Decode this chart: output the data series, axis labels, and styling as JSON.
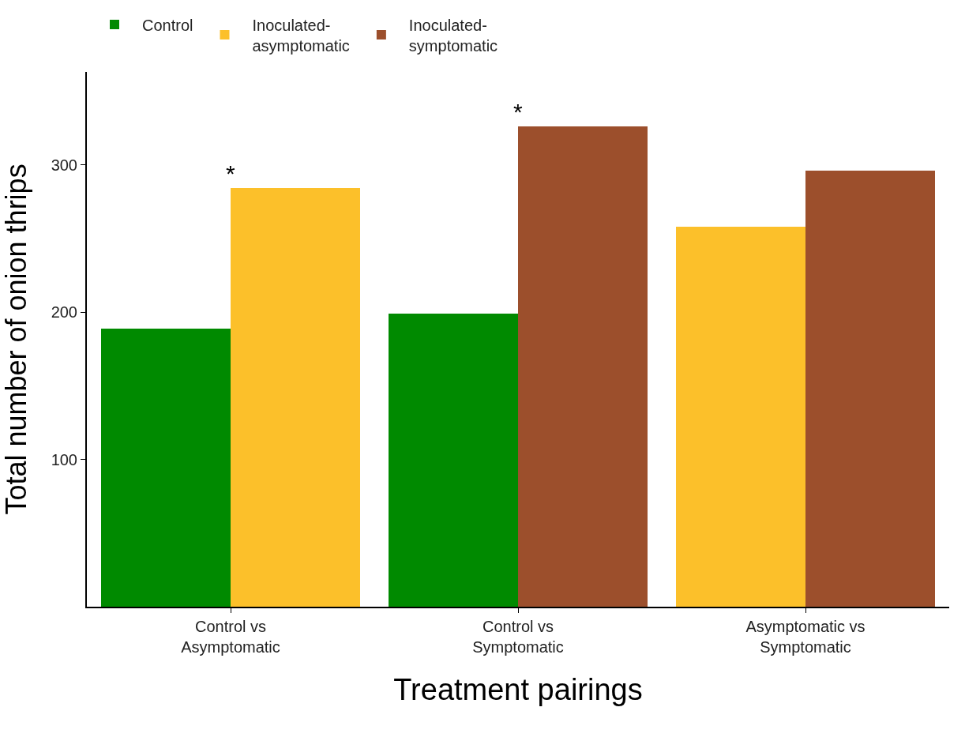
{
  "chart_data": {
    "type": "bar",
    "xlabel": "Treatment pairings",
    "ylabel": "Total number of onion thrips",
    "categories": [
      "Control vs\nAsymptomatic",
      "Control vs\nSymptomatic",
      "Asymptomatic vs\nSymptomatic"
    ],
    "series": [
      {
        "name": "Control",
        "color": "#008a00",
        "values": [
          189,
          199,
          null
        ]
      },
      {
        "name": "Inoculated-\nasymptomatic",
        "color": "#fcc02a",
        "values": [
          284,
          null,
          258
        ]
      },
      {
        "name": "Inoculated-\nsymptomatic",
        "color": "#9c4f2c",
        "values": [
          null,
          326,
          296
        ]
      }
    ],
    "ylim": [
      0,
      363
    ],
    "yticks": [
      100,
      200,
      300
    ],
    "grid": false,
    "legend": "top",
    "annotations": [
      {
        "text": "*",
        "x": "Control vs\nAsymptomatic",
        "y": 284
      },
      {
        "text": "*",
        "x": "Control vs\nSymptomatic",
        "y": 326
      }
    ]
  }
}
